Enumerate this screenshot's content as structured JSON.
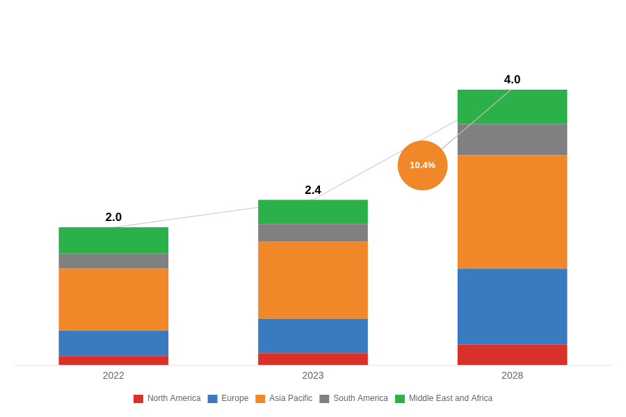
{
  "chart_data": {
    "type": "bar",
    "stacked": true,
    "categories": [
      "2022",
      "2023",
      "2028"
    ],
    "series": [
      {
        "name": "North America",
        "color": "#d9302a",
        "values": [
          0.13,
          0.17,
          0.3
        ]
      },
      {
        "name": "Europe",
        "color": "#3a7abf",
        "values": [
          0.37,
          0.5,
          1.1
        ]
      },
      {
        "name": "Asia Pacific",
        "color": "#f0882a",
        "values": [
          0.9,
          1.13,
          1.65
        ]
      },
      {
        "name": "South America",
        "color": "#808080",
        "values": [
          0.22,
          0.25,
          0.45
        ]
      },
      {
        "name": "Middle East and Africa",
        "color": "#2cb04a",
        "values": [
          0.38,
          0.35,
          0.5
        ]
      }
    ],
    "totals": [
      2.0,
      2.4,
      4.0
    ],
    "total_labels": [
      "2.0",
      "2.4",
      "4.0"
    ],
    "totals_color": "#cccccc",
    "annotations": [
      {
        "text": "10.4%",
        "color": "#f0882a"
      }
    ],
    "ylim": [
      0,
      5.0
    ],
    "grid": false,
    "legend": "bottom",
    "tick_labels": "x"
  }
}
